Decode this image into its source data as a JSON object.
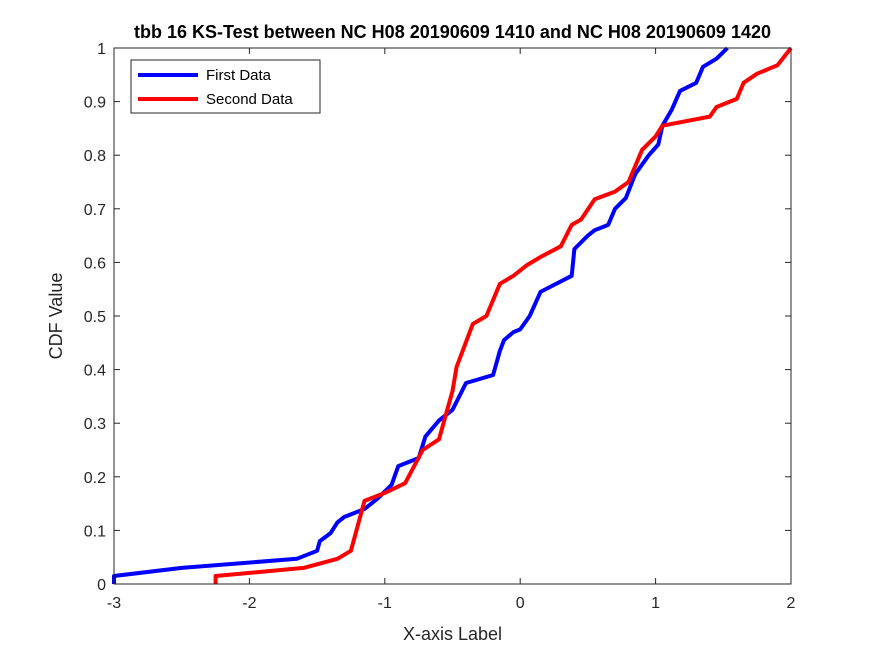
{
  "chart_data": {
    "type": "line",
    "title": "tbb 16 KS-Test between NC H08 20190609 1410 and NC H08 20190609 1420",
    "xlabel": "X-axis Label",
    "ylabel": "CDF Value",
    "xlim": [
      -3,
      2
    ],
    "ylim": [
      0,
      1
    ],
    "xticks": [
      -3,
      -2,
      -1,
      0,
      1,
      2
    ],
    "yticks": [
      0,
      0.1,
      0.2,
      0.3,
      0.4,
      0.5,
      0.6,
      0.7,
      0.8,
      0.9,
      1
    ],
    "xtick_labels": [
      "-3",
      "-2",
      "-1",
      "0",
      "1",
      "2"
    ],
    "ytick_labels": [
      "0",
      "0.1",
      "0.2",
      "0.3",
      "0.4",
      "0.5",
      "0.6",
      "0.7",
      "0.8",
      "0.9",
      "1"
    ],
    "grid": false,
    "legend": "top-left",
    "series": [
      {
        "name": "First Data",
        "color": "#0000ff",
        "points": [
          [
            -3.0,
            0.0
          ],
          [
            -3.0,
            0.015
          ],
          [
            -2.5,
            0.03
          ],
          [
            -1.65,
            0.047
          ],
          [
            -1.5,
            0.062
          ],
          [
            -1.48,
            0.08
          ],
          [
            -1.4,
            0.095
          ],
          [
            -1.35,
            0.115
          ],
          [
            -1.3,
            0.125
          ],
          [
            -1.15,
            0.14
          ],
          [
            -1.05,
            0.16
          ],
          [
            -0.95,
            0.185
          ],
          [
            -0.9,
            0.22
          ],
          [
            -0.75,
            0.235
          ],
          [
            -0.7,
            0.275
          ],
          [
            -0.6,
            0.305
          ],
          [
            -0.5,
            0.325
          ],
          [
            -0.45,
            0.35
          ],
          [
            -0.4,
            0.375
          ],
          [
            -0.2,
            0.39
          ],
          [
            -0.15,
            0.435
          ],
          [
            -0.12,
            0.455
          ],
          [
            -0.05,
            0.47
          ],
          [
            0.0,
            0.475
          ],
          [
            0.07,
            0.5
          ],
          [
            0.15,
            0.545
          ],
          [
            0.38,
            0.575
          ],
          [
            0.4,
            0.625
          ],
          [
            0.5,
            0.65
          ],
          [
            0.55,
            0.66
          ],
          [
            0.65,
            0.67
          ],
          [
            0.7,
            0.7
          ],
          [
            0.78,
            0.72
          ],
          [
            0.85,
            0.765
          ],
          [
            0.95,
            0.8
          ],
          [
            1.02,
            0.82
          ],
          [
            1.05,
            0.855
          ],
          [
            1.12,
            0.885
          ],
          [
            1.18,
            0.92
          ],
          [
            1.3,
            0.935
          ],
          [
            1.35,
            0.965
          ],
          [
            1.45,
            0.98
          ],
          [
            1.53,
            1.0
          ]
        ]
      },
      {
        "name": "Second Data",
        "color": "#ff0000",
        "points": [
          [
            -2.25,
            0.0
          ],
          [
            -2.25,
            0.015
          ],
          [
            -1.6,
            0.03
          ],
          [
            -1.35,
            0.047
          ],
          [
            -1.25,
            0.062
          ],
          [
            -1.15,
            0.155
          ],
          [
            -1.0,
            0.17
          ],
          [
            -0.85,
            0.188
          ],
          [
            -0.72,
            0.25
          ],
          [
            -0.6,
            0.27
          ],
          [
            -0.5,
            0.36
          ],
          [
            -0.47,
            0.405
          ],
          [
            -0.35,
            0.485
          ],
          [
            -0.25,
            0.5
          ],
          [
            -0.15,
            0.56
          ],
          [
            -0.05,
            0.575
          ],
          [
            0.05,
            0.595
          ],
          [
            0.15,
            0.61
          ],
          [
            0.3,
            0.63
          ],
          [
            0.38,
            0.67
          ],
          [
            0.45,
            0.68
          ],
          [
            0.55,
            0.718
          ],
          [
            0.7,
            0.732
          ],
          [
            0.8,
            0.75
          ],
          [
            0.9,
            0.81
          ],
          [
            1.0,
            0.835
          ],
          [
            1.05,
            0.855
          ],
          [
            1.4,
            0.872
          ],
          [
            1.45,
            0.89
          ],
          [
            1.6,
            0.905
          ],
          [
            1.65,
            0.935
          ],
          [
            1.75,
            0.952
          ],
          [
            1.9,
            0.968
          ],
          [
            2.0,
            1.0
          ]
        ]
      }
    ]
  }
}
